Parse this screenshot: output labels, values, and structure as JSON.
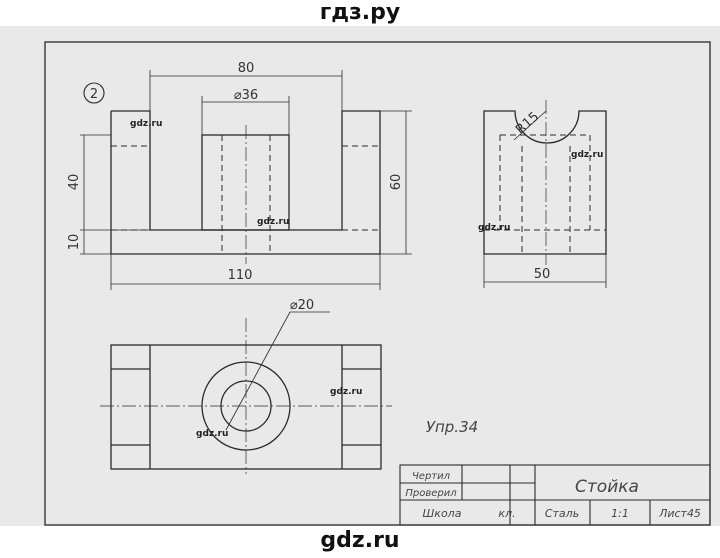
{
  "watermarks": {
    "top": "гдз.ру",
    "bottom": "gdz.ru",
    "inline": "gdz.ru"
  },
  "drawing": {
    "number": "2",
    "exercise": "Упр.34",
    "dimensions": {
      "width_top": "80",
      "hole_dia": "⌀36",
      "height_40": "40",
      "height_10": "10",
      "height_60": "60",
      "length_110": "110",
      "radius": "R15",
      "width_50": "50",
      "dia_20": "⌀20"
    }
  },
  "title_block": {
    "drawn_label": "Чертил",
    "checked_label": "Проверил",
    "school_label": "Школа",
    "class_label": "кл.",
    "title": "Стойка",
    "material": "Сталь",
    "scale": "1:1",
    "sheet": "Лист45"
  }
}
